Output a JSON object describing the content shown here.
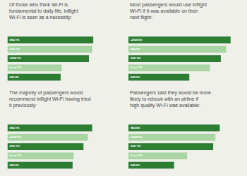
{
  "chart_data": [
    {
      "type": "bar",
      "orientation": "horizontal",
      "title": "Of those who think Wi-Fi is\nfundamental to daily life, inflight\nWi-Fi is seen as a necessity:",
      "categories": [
        "IMEA 79%",
        "APAC 78%",
        "LATAM 75%",
        "Europe 50%",
        "NAM 49%"
      ],
      "values": [
        79,
        78,
        75,
        50,
        49
      ],
      "colors": [
        "#2d7d33",
        "#a8d5a2",
        "#2d7d33",
        "#a8d5a2",
        "#2d7d33"
      ],
      "xlim": [
        0,
        100
      ],
      "tick_labels": false,
      "grid": false
    },
    {
      "type": "bar",
      "orientation": "horizontal",
      "title": "Most passengers would use inflight\nWi-Fi if it was available on their\nnext flight:",
      "categories": [
        "LATAM 94%",
        "IMEA 90%",
        "APAC 85%",
        "Europe 75%",
        "NAM 56%"
      ],
      "values": [
        94,
        90,
        85,
        75,
        56
      ],
      "colors": [
        "#2d7d33",
        "#a8d5a2",
        "#2d7d33",
        "#a8d5a2",
        "#2d7d33"
      ],
      "xlim": [
        0,
        100
      ],
      "tick_labels": false,
      "grid": false
    },
    {
      "type": "bar",
      "orientation": "horizontal",
      "title": "The majority of passengers would\nrecommend inflight Wi-Fi having tried\nit previously:",
      "categories": [
        "IMEA 78%",
        "LATAM 74%",
        "APAC 70%",
        "Europe 61%",
        "NAM 60%"
      ],
      "values": [
        78,
        74,
        70,
        61,
        60
      ],
      "colors": [
        "#2d7d33",
        "#a8d5a2",
        "#2d7d33",
        "#a8d5a2",
        "#2d7d33"
      ],
      "xlim": [
        0,
        100
      ],
      "tick_labels": false,
      "grid": false
    },
    {
      "type": "bar",
      "orientation": "horizontal",
      "title": "Passengers said they would be more\nlikely to rebook with an airline if\nhigh quality Wi-Fi was available:",
      "categories": [
        "IMEA 84%",
        "LATAM 80%",
        "APAC 78%",
        "Europe 54%",
        "NAM 42%"
      ],
      "values": [
        84,
        80,
        78,
        54,
        42
      ],
      "colors": [
        "#2d7d33",
        "#a8d5a2",
        "#2d7d33",
        "#a8d5a2",
        "#2d7d33"
      ],
      "xlim": [
        0,
        100
      ],
      "tick_labels": false,
      "grid": false
    }
  ]
}
